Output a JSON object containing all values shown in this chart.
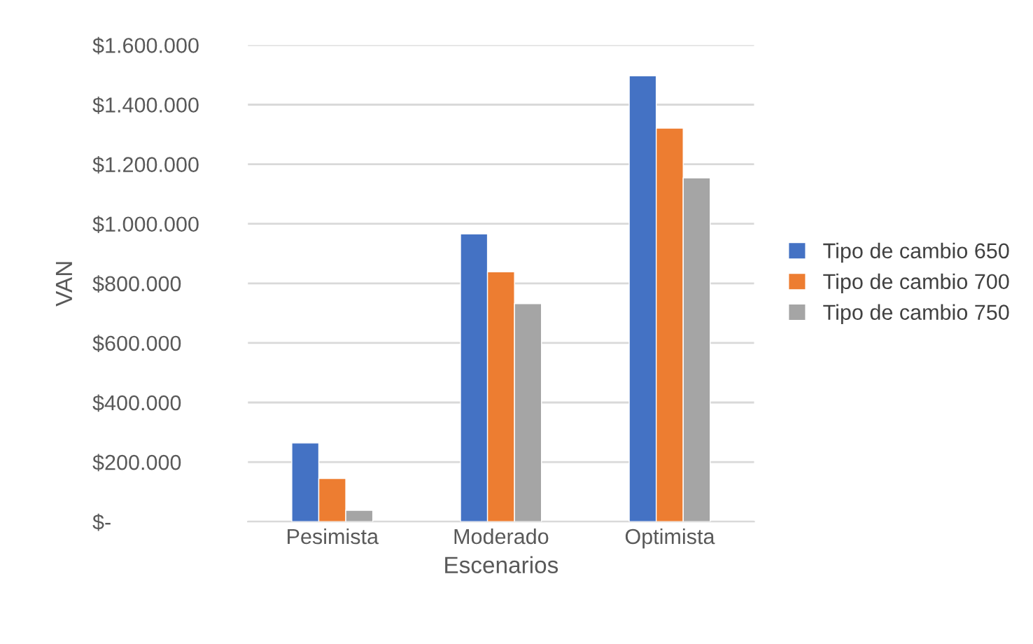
{
  "chart_data": {
    "type": "bar",
    "xlabel": "Escenarios",
    "ylabel": "VAN",
    "categories": [
      "Pesimista",
      "Moderado",
      "Optimista"
    ],
    "series": [
      {
        "name": "Tipo de cambio 650",
        "color": "#4472c4",
        "values": [
          264000,
          966000,
          1497000
        ]
      },
      {
        "name": "Tipo de cambio 700",
        "color": "#ed7d31",
        "values": [
          145000,
          839000,
          1321000
        ]
      },
      {
        "name": "Tipo de cambio 750",
        "color": "#a5a5a5",
        "values": [
          38000,
          732000,
          1154000
        ]
      }
    ],
    "ylim": [
      0,
      1600000
    ],
    "yticks": [
      {
        "value": 0,
        "label": "$-"
      },
      {
        "value": 200000,
        "label": "$200.000"
      },
      {
        "value": 400000,
        "label": "$400.000"
      },
      {
        "value": 600000,
        "label": "$600.000"
      },
      {
        "value": 800000,
        "label": "$800.000"
      },
      {
        "value": 1000000,
        "label": "$1.000.000"
      },
      {
        "value": 1200000,
        "label": "$1.200.000"
      },
      {
        "value": 1400000,
        "label": "$1.400.000"
      },
      {
        "value": 1600000,
        "label": "$1.600.000"
      }
    ],
    "grid": "y",
    "legend": "right"
  }
}
